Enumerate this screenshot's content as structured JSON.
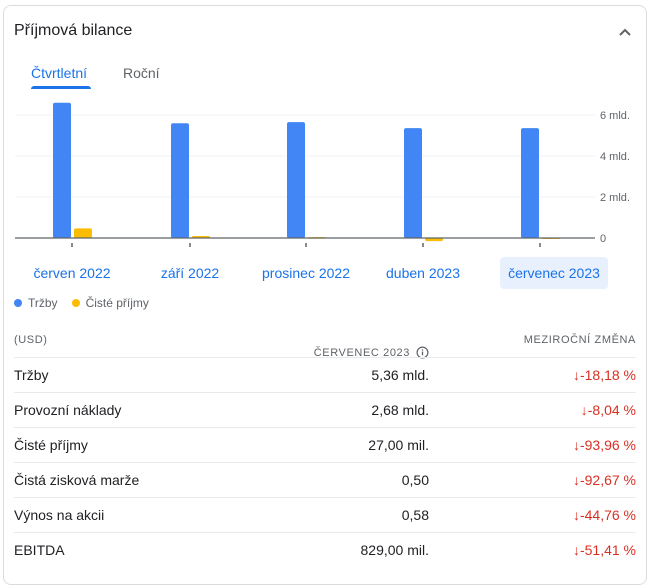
{
  "title": "Příjmová bilance",
  "tabs": [
    {
      "label": "Čtvrtletní",
      "active": true
    },
    {
      "label": "Roční",
      "active": false
    }
  ],
  "chart_data": {
    "type": "bar",
    "categories": [
      "červen 2022",
      "září 2022",
      "prosinec 2022",
      "duben 2023",
      "červenec 2023"
    ],
    "selected_category": "červenec 2023",
    "series": [
      {
        "name": "Tržby",
        "color": "#4285f4",
        "values": [
          6.6,
          5.6,
          5.65,
          5.36,
          5.36
        ]
      },
      {
        "name": "Čisté příjmy",
        "color": "#fbbc04",
        "values": [
          0.47,
          0.1,
          0.04,
          -0.15,
          0.027
        ]
      }
    ],
    "y_unit": "mld.",
    "ylim": [
      -0.3,
      6.8
    ],
    "yticks": [
      {
        "v": 0,
        "label": "0"
      },
      {
        "v": 2,
        "label": "2 mld."
      },
      {
        "v": 4,
        "label": "4 mld."
      },
      {
        "v": 6,
        "label": "6 mld."
      }
    ],
    "legend_position": "bottom-left"
  },
  "table": {
    "currency": "(USD)",
    "period": "ČERVENEC 2023",
    "change_header": "MEZIROČNÍ ZMĚNA",
    "rows": [
      {
        "label": "Tržby",
        "value": "5,36 mld.",
        "change": "-18,18 %"
      },
      {
        "label": "Provozní náklady",
        "value": "2,68 mld.",
        "change": "-8,04 %"
      },
      {
        "label": "Čisté příjmy",
        "value": "27,00 mil.",
        "change": "-93,96 %"
      },
      {
        "label": "Čistá zisková marže",
        "value": "0,50",
        "change": "-92,67 %"
      },
      {
        "label": "Výnos na akcii",
        "value": "0,58",
        "change": "-44,76 %"
      },
      {
        "label": "EBITDA",
        "value": "829,00 mil.",
        "change": "-51,41 %"
      }
    ]
  }
}
